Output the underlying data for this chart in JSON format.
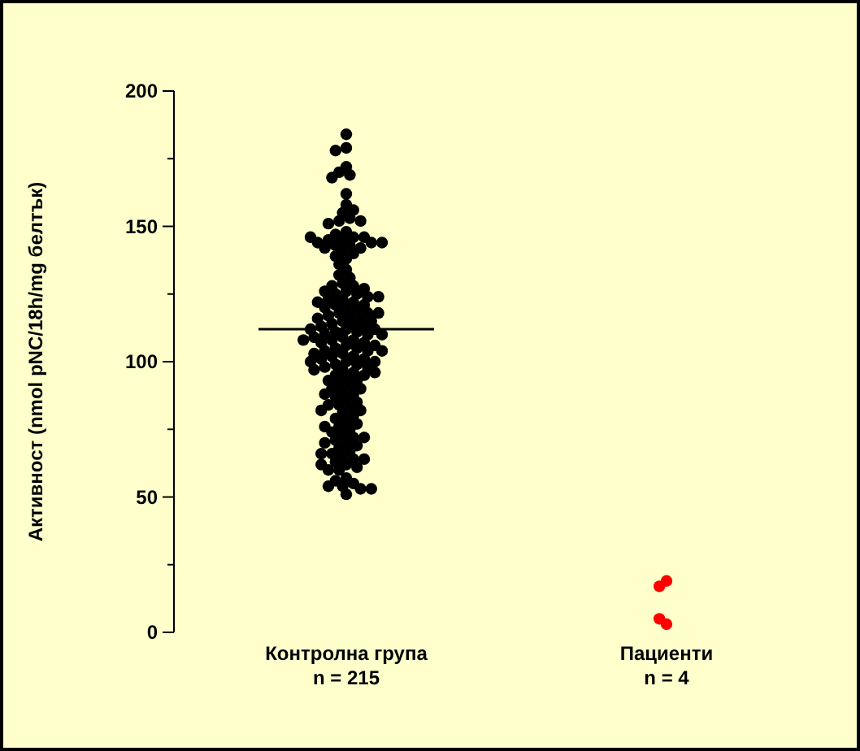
{
  "chart_data": {
    "type": "scatter",
    "ylabel": "Активност (nmol pNC/18h/mg белтък)",
    "categories": [
      "Контролна група\nn = 215",
      "Пациенти\nn = 4"
    ],
    "ylim": [
      0,
      200
    ],
    "yticks": [
      0,
      {
        "value": 25,
        "label": null
      },
      50,
      {
        "value": 75,
        "label": null
      },
      100,
      {
        "value": 125,
        "label": null
      },
      150,
      {
        "value": 175,
        "label": null
      },
      200
    ],
    "grid": false,
    "marker": "circle",
    "ref_lines": [
      {
        "axis": "y",
        "value": 112,
        "color": "#000000"
      }
    ],
    "series": [
      {
        "color": "#000000",
        "x": [
          "Контролна група\nn = 215",
          "Контролна група\nn = 215",
          "Контролна група\nn = 215",
          "Контролна група\nn = 215",
          "Контролна група\nn = 215",
          "Контролна група\nn = 215",
          "Контролна група\nn = 215",
          "Контролна група\nn = 215",
          "Контролна група\nn = 215",
          "Контролна група\nn = 215",
          "Контролна група\nn = 215",
          "Контролна група\nn = 215",
          "Контролна група\nn = 215",
          "Контролна група\nn = 215",
          "Контролна група\nn = 215",
          "Контролна група\nn = 215",
          "Контролна група\nn = 215",
          "Контролна група\nn = 215",
          "Контролна група\nn = 215",
          "Контролна група\nn = 215",
          "Контролна група\nn = 215",
          "Контролна група\nn = 215",
          "Контролна група\nn = 215",
          "Контролна група\nn = 215",
          "Контролна група\nn = 215",
          "Контролна група\nn = 215",
          "Контролна група\nn = 215",
          "Контролна група\nn = 215",
          "Контролна група\nn = 215",
          "Контролна група\nn = 215",
          "Контролна група\nn = 215",
          "Контролна група\nn = 215",
          "Контролна група\nn = 215",
          "Контролна група\nn = 215",
          "Контролна група\nn = 215",
          "Контролна група\nn = 215",
          "Контролна група\nn = 215",
          "Контролна група\nn = 215",
          "Контролна група\nn = 215",
          "Контролна група\nn = 215",
          "Контролна група\nn = 215",
          "Контролна група\nn = 215",
          "Контролна група\nn = 215",
          "Контролна група\nn = 215",
          "Контролна група\nn = 215",
          "Контролна група\nn = 215",
          "Контролна група\nn = 215",
          "Контролна група\nn = 215",
          "Контролна група\nn = 215",
          "Контролна група\nn = 215",
          "Контролна група\nn = 215",
          "Контролна група\nn = 215",
          "Контролна група\nn = 215",
          "Контролна група\nn = 215",
          "Контролна група\nn = 215",
          "Контролна група\nn = 215",
          "Контролна група\nn = 215",
          "Контролна група\nn = 215",
          "Контролна група\nn = 215",
          "Контролна група\nn = 215",
          "Контролна група\nn = 215",
          "Контролна група\nn = 215",
          "Контролна група\nn = 215",
          "Контролна група\nn = 215",
          "Контролна група\nn = 215",
          "Контролна група\nn = 215",
          "Контролна група\nn = 215",
          "Контролна група\nn = 215",
          "Контролна група\nn = 215",
          "Контролна група\nn = 215",
          "Контролна група\nn = 215",
          "Контролна група\nn = 215",
          "Контролна група\nn = 215",
          "Контролна група\nn = 215",
          "Контролна група\nn = 215",
          "Контролна група\nn = 215",
          "Контролна група\nn = 215",
          "Контролна група\nn = 215",
          "Контролна група\nn = 215",
          "Контролна група\nn = 215",
          "Контролна група\nn = 215",
          "Контролна група\nn = 215",
          "Контролна група\nn = 215",
          "Контролна група\nn = 215",
          "Контролна група\nn = 215",
          "Контролна група\nn = 215",
          "Контролна група\nn = 215",
          "Контролна група\nn = 215",
          "Контролна група\nn = 215",
          "Контролна група\nn = 215",
          "Контролна група\nn = 215",
          "Контролна група\nn = 215",
          "Контролна група\nn = 215",
          "Контролна група\nn = 215",
          "Контролна група\nn = 215",
          "Контролна група\nn = 215",
          "Контролна група\nn = 215",
          "Контролна група\nn = 215",
          "Контролна група\nn = 215",
          "Контролна група\nn = 215",
          "Контролна група\nn = 215",
          "Контролна група\nn = 215",
          "Контролна група\nn = 215",
          "Контролна група\nn = 215",
          "Контролна група\nn = 215",
          "Контролна група\nn = 215",
          "Контролна група\nn = 215",
          "Контролна група\nn = 215",
          "Контролна група\nn = 215",
          "Контролна група\nn = 215",
          "Контролна група\nn = 215",
          "Контролна група\nn = 215",
          "Контролна група\nn = 215",
          "Контролна група\nn = 215",
          "Контролна група\nn = 215",
          "Контролна група\nn = 215",
          "Контролна група\nn = 215",
          "Контролна група\nn = 215",
          "Контролна група\nn = 215",
          "Контролна група\nn = 215",
          "Контролна група\nn = 215",
          "Контролна група\nn = 215",
          "Контролна група\nn = 215",
          "Контролна група\nn = 215",
          "Контролна група\nn = 215",
          "Контролна група\nn = 215",
          "Контролна група\nn = 215",
          "Контролна група\nn = 215",
          "Контролна група\nn = 215",
          "Контролна група\nn = 215",
          "Контролна група\nn = 215",
          "Контролна група\nn = 215",
          "Контролна група\nn = 215",
          "Контролна група\nn = 215",
          "Контролна група\nn = 215",
          "Контролна група\nn = 215",
          "Контролна група\nn = 215",
          "Контролна група\nn = 215",
          "Контролна група\nn = 215",
          "Контролна група\nn = 215",
          "Контролна група\nn = 215",
          "Контролна група\nn = 215",
          "Контролна група\nn = 215",
          "Контролна група\nn = 215",
          "Контролна група\nn = 215",
          "Контролна група\nn = 215",
          "Контролна група\nn = 215",
          "Контролна група\nn = 215",
          "Контролна група\nn = 215",
          "Контролна група\nn = 215",
          "Контролна група\nn = 215",
          "Контролна група\nn = 215",
          "Контролна група\nn = 215",
          "Контролна група\nn = 215",
          "Контролна група\nn = 215",
          "Контролна група\nn = 215",
          "Контролна група\nn = 215",
          "Контролна група\nn = 215",
          "Контролна група\nn = 215",
          "Контролна група\nn = 215",
          "Контролна група\nn = 215",
          "Контролна група\nn = 215",
          "Контролна група\nn = 215",
          "Контролна група\nn = 215",
          "Контролна група\nn = 215"
        ],
        "values": [
          184,
          179,
          178,
          172,
          170,
          169,
          168,
          162,
          158,
          155,
          156,
          153,
          152,
          152,
          151,
          148,
          147,
          146,
          146,
          145,
          145,
          144,
          144,
          143,
          143,
          142,
          142,
          141,
          140,
          139,
          138,
          136,
          134,
          132,
          131,
          129,
          128,
          128,
          127,
          126,
          126,
          125,
          125,
          124,
          123,
          123,
          122,
          122,
          121,
          121,
          120,
          120,
          119,
          118,
          118,
          117,
          117,
          116,
          116,
          115,
          115,
          114,
          114,
          113,
          113,
          112,
          112,
          112,
          111,
          111,
          110,
          110,
          110,
          109,
          109,
          108,
          108,
          107,
          107,
          106,
          106,
          105,
          105,
          104,
          104,
          103,
          103,
          102,
          102,
          101,
          101,
          100,
          100,
          100,
          99,
          99,
          98,
          98,
          97,
          97,
          96,
          95,
          95,
          94,
          93,
          93,
          92,
          91,
          90,
          90,
          89,
          88,
          87,
          86,
          85,
          84,
          84,
          83,
          82,
          81,
          80,
          79,
          78,
          77,
          76,
          75,
          74,
          73,
          72,
          71,
          70,
          69,
          68,
          67,
          66,
          65,
          64,
          63,
          62,
          61,
          60,
          57,
          56,
          55,
          54,
          54,
          53,
          53,
          51,
          64,
          70,
          76,
          82,
          88,
          96,
          104,
          108,
          118,
          124,
          144,
          146,
          60,
          62,
          66,
          72
        ]
      },
      {
        "color": "#ff0000",
        "x": [
          "Пациенти\nn = 4",
          "Пациенти\nn = 4",
          "Пациенти\nn = 4",
          "Пациенти\nn = 4"
        ],
        "values": [
          19,
          17,
          3,
          5
        ]
      }
    ]
  }
}
